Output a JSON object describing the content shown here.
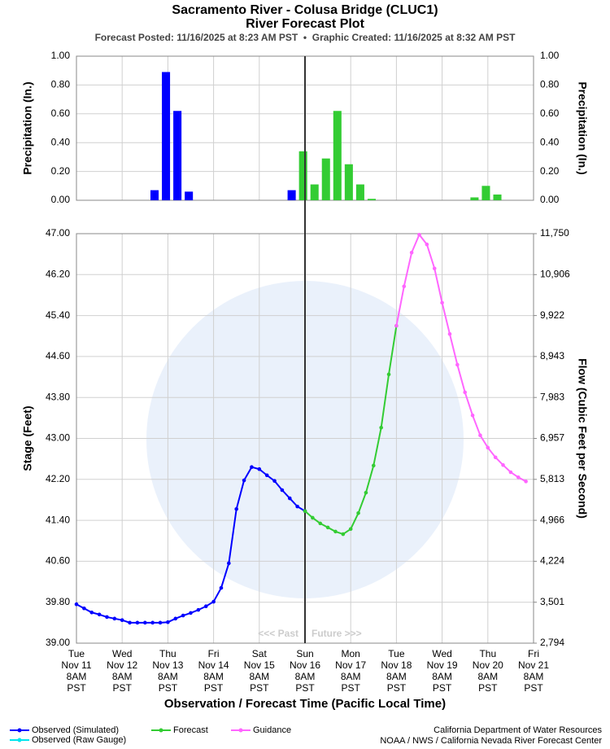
{
  "header": {
    "title": "Sacramento River - Colusa Bridge (CLUC1)",
    "subtitle": "River Forecast Plot",
    "posted": "Forecast Posted: 11/16/2025 at 8:23 AM PST  •  Graphic Created: 11/16/2025 at 8:32 AM PST"
  },
  "footer": [
    "California Department of Water Resources",
    "NOAA / NWS / California Nevada River Forecast Center"
  ],
  "chart_data": [
    {
      "type": "bar",
      "y_label": "Precipitation (In.)",
      "xlim": [
        0,
        240
      ],
      "xticks": [
        0,
        24,
        48,
        72,
        96,
        120,
        144,
        168,
        192,
        216,
        240
      ],
      "ylim": [
        0,
        1
      ],
      "yticks": [
        {
          "value": 0,
          "label": "0.00"
        },
        {
          "value": 0.2,
          "label": "0.20"
        },
        {
          "value": 0.4,
          "label": "0.40"
        },
        {
          "value": 0.6,
          "label": "0.60"
        },
        {
          "value": 0.8,
          "label": "0.80"
        },
        {
          "value": 1,
          "label": "1.00"
        }
      ],
      "bar_hours": 6,
      "grid": true,
      "series": [
        {
          "color": "#0000ff",
          "x": [
            44,
            50,
            56,
            62,
            116
          ],
          "values": [
            0.07,
            0.89,
            0.62,
            0.06,
            0.07
          ]
        },
        {
          "color": "#33cc33",
          "x": [
            122,
            128,
            134,
            140,
            146,
            152,
            158,
            212,
            218,
            224
          ],
          "values": [
            0.34,
            0.11,
            0.29,
            0.62,
            0.25,
            0.11,
            0.01,
            0.02,
            0.1,
            0.04
          ]
        }
      ]
    },
    {
      "type": "line",
      "y_label": "Stage (Feet)",
      "y2_label": "Flow (Cubic Feet per Second)",
      "x_label": "Observation / Forecast Time (Pacific Local Time)",
      "xlim": [
        0,
        240
      ],
      "xticks": [
        {
          "value": 0,
          "label": [
            "Tue",
            "Nov 11",
            "8AM",
            "PST"
          ]
        },
        {
          "value": 24,
          "label": [
            "Wed",
            "Nov 12",
            "8AM",
            "PST"
          ]
        },
        {
          "value": 48,
          "label": [
            "Thu",
            "Nov 13",
            "8AM",
            "PST"
          ]
        },
        {
          "value": 72,
          "label": [
            "Fri",
            "Nov 14",
            "8AM",
            "PST"
          ]
        },
        {
          "value": 96,
          "label": [
            "Sat",
            "Nov 15",
            "8AM",
            "PST"
          ]
        },
        {
          "value": 120,
          "label": [
            "Sun",
            "Nov 16",
            "8AM",
            "PST"
          ]
        },
        {
          "value": 144,
          "label": [
            "Mon",
            "Nov 17",
            "8AM",
            "PST"
          ]
        },
        {
          "value": 168,
          "label": [
            "Tue",
            "Nov 18",
            "8AM",
            "PST"
          ]
        },
        {
          "value": 192,
          "label": [
            "Wed",
            "Nov 19",
            "8AM",
            "PST"
          ]
        },
        {
          "value": 216,
          "label": [
            "Thu",
            "Nov 20",
            "8AM",
            "PST"
          ]
        },
        {
          "value": 240,
          "label": [
            "Fri",
            "Nov 21",
            "8AM",
            "PST"
          ]
        }
      ],
      "ylim": [
        39,
        47
      ],
      "yticks": [
        {
          "value": 39,
          "label": "39.00"
        },
        {
          "value": 39.8,
          "label": "39.80"
        },
        {
          "value": 40.6,
          "label": "40.60"
        },
        {
          "value": 41.4,
          "label": "41.40"
        },
        {
          "value": 42.2,
          "label": "42.20"
        },
        {
          "value": 43,
          "label": "43.00"
        },
        {
          "value": 43.8,
          "label": "43.80"
        },
        {
          "value": 44.6,
          "label": "44.60"
        },
        {
          "value": 45.4,
          "label": "45.40"
        },
        {
          "value": 46.2,
          "label": "46.20"
        },
        {
          "value": 47,
          "label": "47.00"
        }
      ],
      "y2ticks": [
        {
          "value": 2794,
          "label": "2,794"
        },
        {
          "value": 3501,
          "label": "3,501"
        },
        {
          "value": 4224,
          "label": "4,224"
        },
        {
          "value": 4966,
          "label": "4,966"
        },
        {
          "value": 5813,
          "label": "5,813"
        },
        {
          "value": 6957,
          "label": "6,957"
        },
        {
          "value": 7983,
          "label": "7,983"
        },
        {
          "value": 8943,
          "label": "8,943"
        },
        {
          "value": 9922,
          "label": "9,922"
        },
        {
          "value": 10906,
          "label": "10,906"
        },
        {
          "value": 11750,
          "label": "11,750"
        }
      ],
      "grid": true,
      "now": 120,
      "annotations": [
        "<<< Past",
        "Future >>>"
      ],
      "series": [
        {
          "name": "Observed (Simulated)",
          "color": "#0000ff",
          "x": [
            0,
            4,
            8,
            12,
            16,
            20,
            24,
            28,
            32,
            36,
            40,
            44,
            48,
            52,
            56,
            60,
            64,
            68,
            72,
            76,
            80,
            84,
            88,
            92,
            96,
            100,
            104,
            108,
            112,
            116,
            120
          ],
          "values": [
            39.76,
            39.68,
            39.6,
            39.56,
            39.51,
            39.48,
            39.45,
            39.4,
            39.4,
            39.4,
            39.4,
            39.4,
            39.41,
            39.48,
            39.54,
            39.59,
            39.65,
            39.72,
            39.81,
            40.08,
            40.56,
            41.62,
            42.18,
            42.44,
            42.4,
            42.28,
            42.17,
            41.99,
            41.83,
            41.67,
            41.58
          ]
        },
        {
          "name": "Observed (Raw Gauge)",
          "color": "#00e5ee",
          "x": [],
          "values": []
        },
        {
          "name": "Forecast",
          "color": "#33cc33",
          "x": [
            120,
            124,
            128,
            132,
            136,
            140,
            144,
            148,
            152,
            156,
            160,
            164,
            168
          ],
          "values": [
            41.58,
            41.45,
            41.34,
            41.26,
            41.18,
            41.13,
            41.23,
            41.54,
            41.94,
            42.47,
            43.21,
            44.25,
            45.2
          ]
        },
        {
          "name": "Guidance",
          "color": "#ff66ff",
          "x": [
            168,
            172,
            176,
            180,
            184,
            188,
            192,
            196,
            200,
            204,
            208,
            212,
            216,
            220,
            224,
            228,
            232,
            236
          ],
          "values": [
            45.2,
            45.97,
            46.63,
            46.98,
            46.79,
            46.32,
            45.65,
            45.04,
            44.44,
            43.9,
            43.45,
            43.06,
            42.82,
            42.63,
            42.48,
            42.34,
            42.24,
            42.16
          ]
        }
      ]
    }
  ]
}
